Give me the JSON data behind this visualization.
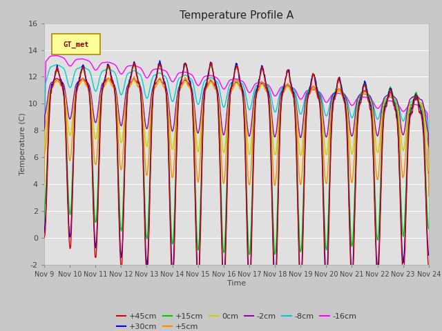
{
  "title": "Temperature Profile A",
  "xlabel": "Time",
  "ylabel": "Temperature (C)",
  "ylim": [
    -2,
    16
  ],
  "xlim": [
    0,
    15
  ],
  "yticks": [
    -2,
    0,
    2,
    4,
    6,
    8,
    10,
    12,
    14,
    16
  ],
  "xtick_labels": [
    "Nov 9",
    "Nov 10",
    "Nov 11",
    "Nov 12",
    "Nov 13",
    "Nov 14",
    "Nov 15",
    "Nov 16",
    "Nov 17",
    "Nov 18",
    "Nov 19",
    "Nov 20",
    "Nov 21",
    "Nov 22",
    "Nov 23",
    "Nov 24"
  ],
  "series": {
    "+45cm": {
      "color": "#dd0000"
    },
    "+30cm": {
      "color": "#0000dd"
    },
    "+15cm": {
      "color": "#00cc00"
    },
    "+5cm": {
      "color": "#ff8800"
    },
    "0cm": {
      "color": "#cccc00"
    },
    "-2cm": {
      "color": "#9900aa"
    },
    "-8cm": {
      "color": "#00cccc"
    },
    "-16cm": {
      "color": "#ff00ff"
    }
  },
  "gt_met_bg": "#ffff99",
  "gt_met_border": "#aa8800",
  "gt_met_text_color": "#880000",
  "fig_bg": "#c8c8c8",
  "plot_bg": "#e0e0e0",
  "grid_color": "#ffffff",
  "linewidth": 1.0
}
